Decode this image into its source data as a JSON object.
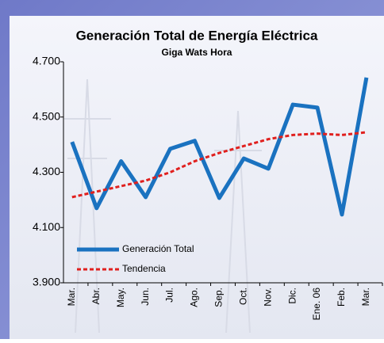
{
  "chart_data": {
    "type": "line",
    "title": "Generación Total de Energía Eléctrica",
    "subtitle": "Giga Wats Hora",
    "categories": [
      "Mar.",
      "Abr.",
      "May.",
      "Jun.",
      "Jul.",
      "Ago.",
      "Sep.",
      "Oct.",
      "Nov.",
      "Dic.",
      "Ene. 06",
      "Feb.",
      "Mar."
    ],
    "series": [
      {
        "name": "Generación Total",
        "color": "#1a72c0",
        "dash": false,
        "values": [
          4410,
          4170,
          4340,
          4210,
          4385,
          4414,
          4207,
          4350,
          4313,
          4545,
          4534,
          4147,
          4643
        ]
      },
      {
        "name": "Tendencia",
        "color": "#e0201e",
        "dash": true,
        "values": [
          4210,
          4230,
          4250,
          4270,
          4300,
          4340,
          4370,
          4395,
          4420,
          4435,
          4440,
          4435,
          4445
        ]
      }
    ],
    "ylim": [
      3900,
      4700
    ],
    "yticks": [
      {
        "value": 3900,
        "label": "3.900"
      },
      {
        "value": 4100,
        "label": "4.100"
      },
      {
        "value": 4300,
        "label": "4.300"
      },
      {
        "value": 4500,
        "label": "4.500"
      },
      {
        "value": 4700,
        "label": "4.700"
      }
    ],
    "legend": "lower-left"
  }
}
